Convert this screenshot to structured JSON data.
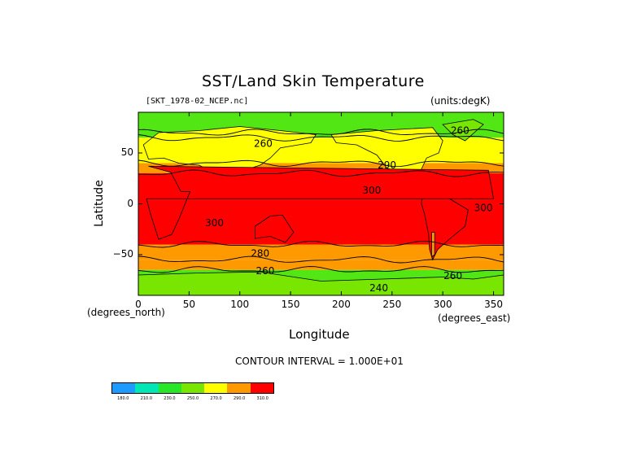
{
  "chart_data": {
    "type": "heatmap",
    "title": "SST/Land Skin Temperature",
    "file_label": "[SKT_1978-02_NCEP.nc]",
    "units_label": "(units:degK)",
    "xlabel": "Longitude",
    "xlabel_note": "(degrees_east)",
    "ylabel": "Latitude",
    "ylabel_note": "(degrees_north)",
    "contour_interval_text": "CONTOUR INTERVAL = 1.000E+01",
    "xlim": [
      0,
      360
    ],
    "ylim": [
      -90,
      90
    ],
    "x_ticks": [
      0,
      50,
      100,
      150,
      200,
      250,
      300,
      350
    ],
    "x_tick_labels": [
      "0",
      "50",
      "100",
      "150",
      "200",
      "250",
      "300",
      "350"
    ],
    "y_ticks": [
      50,
      0,
      -50
    ],
    "y_tick_labels": [
      "50",
      "0",
      "−50"
    ],
    "colorbar": {
      "levels": [
        "180.0",
        "210.0",
        "230.0",
        "250.0",
        "270.0",
        "290.0",
        "310.0"
      ],
      "colors": [
        "#1e9bff",
        "#00e6b4",
        "#28e628",
        "#78e600",
        "#ffff00",
        "#ff9900",
        "#ff0000"
      ]
    },
    "bands": [
      {
        "lat": [
          70,
          90
        ],
        "value": 250
      },
      {
        "lat": [
          65,
          70
        ],
        "value": 260
      },
      {
        "lat": [
          40,
          65
        ],
        "value": 270
      },
      {
        "lat": [
          30,
          40
        ],
        "value": 290
      },
      {
        "lat": [
          -40,
          30
        ],
        "value": 300
      },
      {
        "lat": [
          -55,
          -40
        ],
        "value": 280
      },
      {
        "lat": [
          -65,
          -55
        ],
        "value": 275
      },
      {
        "lat": [
          -90,
          -65
        ],
        "value": 250
      }
    ],
    "contour_labels": [
      {
        "lon": 123,
        "lat": 56,
        "text": "260"
      },
      {
        "lon": 317,
        "lat": 69,
        "text": "260"
      },
      {
        "lon": 245,
        "lat": 35,
        "text": "290"
      },
      {
        "lon": 230,
        "lat": 10,
        "text": "300"
      },
      {
        "lon": 75,
        "lat": -22,
        "text": "300"
      },
      {
        "lon": 340,
        "lat": -7,
        "text": "300"
      },
      {
        "lon": 120,
        "lat": -52,
        "text": "280"
      },
      {
        "lon": 125,
        "lat": -69,
        "text": "260"
      },
      {
        "lon": 310,
        "lat": -74,
        "text": "260"
      },
      {
        "lon": 237,
        "lat": -86,
        "text": "240"
      }
    ]
  }
}
